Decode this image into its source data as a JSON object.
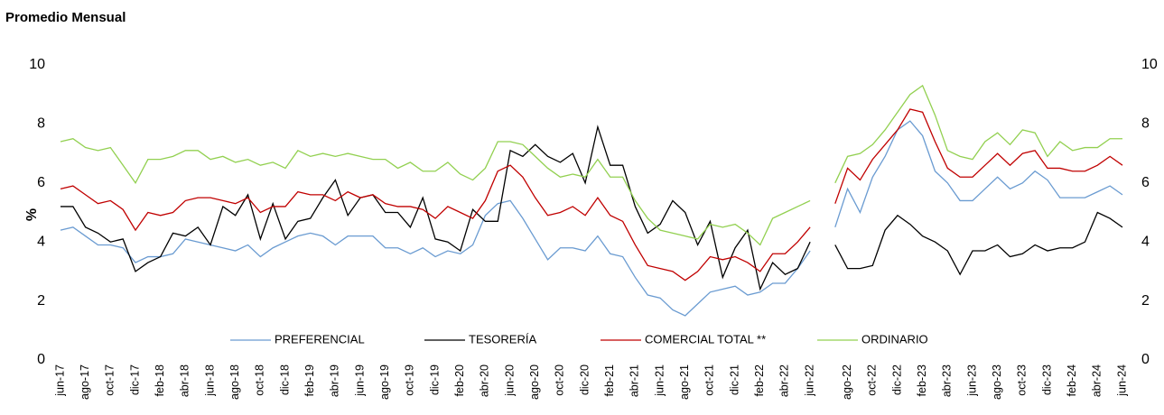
{
  "chart_data": {
    "type": "line",
    "subtitle": "Promedio Mensual",
    "y_label": "%",
    "categories": [
      "jun-17",
      null,
      "ago-17",
      null,
      "oct-17",
      null,
      "dic-17",
      null,
      "feb-18",
      null,
      "abr-18",
      null,
      "jun-18",
      null,
      "ago-18",
      null,
      "oct-18",
      null,
      "dic-18",
      null,
      "feb-19",
      null,
      "abr-19",
      null,
      "jun-19",
      null,
      "ago-19",
      null,
      "oct-19",
      null,
      "dic-19",
      null,
      "feb-20",
      null,
      "abr-20",
      null,
      "jun-20",
      null,
      "ago-20",
      null,
      "oct-20",
      null,
      "dic-20",
      null,
      "feb-21",
      null,
      "abr-21",
      null,
      "jun-21",
      null,
      "ago-21",
      null,
      "oct-21",
      null,
      "dic-21",
      null,
      "feb-22",
      null,
      "abr-22",
      null,
      "jun-22",
      null,
      null,
      "ago-22",
      null,
      "oct-22",
      null,
      "dic-22",
      null,
      "feb-23",
      null,
      "abr-23",
      null,
      "jun-23",
      null,
      "ago-23",
      null,
      "oct-23",
      null,
      "dic-23",
      null,
      "feb-24",
      null,
      "abr-24",
      null,
      "jun-24"
    ],
    "series": [
      {
        "name": "PREFERENCIAL",
        "color": "#6a9bd1",
        "values": [
          4.4,
          4.5,
          4.2,
          3.9,
          3.9,
          3.8,
          3.3,
          3.5,
          3.5,
          3.6,
          4.1,
          4.0,
          3.9,
          3.8,
          3.7,
          3.9,
          3.5,
          3.8,
          4.0,
          4.2,
          4.3,
          4.2,
          3.9,
          4.2,
          4.2,
          4.2,
          3.8,
          3.8,
          3.6,
          3.8,
          3.5,
          3.7,
          3.6,
          3.9,
          4.9,
          5.3,
          5.4,
          4.8,
          4.1,
          3.4,
          3.8,
          3.8,
          3.7,
          4.2,
          3.6,
          3.5,
          2.8,
          2.2,
          2.1,
          1.7,
          1.5,
          1.9,
          2.3,
          2.4,
          2.5,
          2.2,
          2.3,
          2.6,
          2.6,
          3.1,
          3.7,
          null,
          4.5,
          5.8,
          5.0,
          6.2,
          6.9,
          7.8,
          8.1,
          7.6,
          6.4,
          6.0,
          5.4,
          5.4,
          5.8,
          6.2,
          5.8,
          6.0,
          6.4,
          6.1,
          5.5,
          5.5,
          5.5,
          5.7,
          5.9,
          5.6
        ]
      },
      {
        "name": "TESORERÍA",
        "color": "#000000",
        "values": [
          5.2,
          5.2,
          4.5,
          4.3,
          4.0,
          4.1,
          3.0,
          3.3,
          3.5,
          4.3,
          4.2,
          4.5,
          3.9,
          5.2,
          4.9,
          5.6,
          4.1,
          5.3,
          4.1,
          4.7,
          4.8,
          5.5,
          6.1,
          4.9,
          5.5,
          5.6,
          5.0,
          5.0,
          4.5,
          5.5,
          4.1,
          4.0,
          3.7,
          5.1,
          4.7,
          4.7,
          7.1,
          6.9,
          7.3,
          6.9,
          6.7,
          7.0,
          6.0,
          7.9,
          6.6,
          6.6,
          5.2,
          4.3,
          4.6,
          5.4,
          5.0,
          3.9,
          4.7,
          2.8,
          3.8,
          4.4,
          2.4,
          3.3,
          2.9,
          3.1,
          4.0,
          null,
          3.9,
          3.1,
          3.1,
          3.2,
          4.4,
          4.9,
          4.6,
          4.2,
          4.0,
          3.7,
          2.9,
          3.7,
          3.7,
          3.9,
          3.5,
          3.6,
          3.9,
          3.7,
          3.8,
          3.8,
          4.0,
          5.0,
          4.8,
          4.5
        ]
      },
      {
        "name": "COMERCIAL TOTAL **",
        "color": "#c00000",
        "values": [
          5.8,
          5.9,
          5.6,
          5.3,
          5.4,
          5.1,
          4.4,
          5.0,
          4.9,
          5.0,
          5.4,
          5.5,
          5.5,
          5.4,
          5.3,
          5.5,
          5.0,
          5.2,
          5.2,
          5.7,
          5.6,
          5.6,
          5.4,
          5.7,
          5.5,
          5.6,
          5.3,
          5.2,
          5.2,
          5.1,
          4.8,
          5.2,
          5.0,
          4.8,
          5.4,
          6.4,
          6.6,
          6.2,
          5.5,
          4.9,
          5.0,
          5.2,
          4.9,
          5.5,
          4.9,
          4.7,
          3.9,
          3.2,
          3.1,
          3.0,
          2.7,
          3.0,
          3.5,
          3.4,
          3.5,
          3.3,
          3.0,
          3.6,
          3.6,
          4.0,
          4.5,
          null,
          5.3,
          6.5,
          6.1,
          6.8,
          7.3,
          7.8,
          8.5,
          8.4,
          7.4,
          6.5,
          6.2,
          6.2,
          6.6,
          7.0,
          6.6,
          7.0,
          7.1,
          6.5,
          6.5,
          6.4,
          6.4,
          6.6,
          6.9,
          6.6
        ]
      },
      {
        "name": "ORDINARIO",
        "color": "#92d050",
        "values": [
          7.4,
          7.5,
          7.2,
          7.1,
          7.2,
          6.6,
          6.0,
          6.8,
          6.8,
          6.9,
          7.1,
          7.1,
          6.8,
          6.9,
          6.7,
          6.8,
          6.6,
          6.7,
          6.5,
          7.1,
          6.9,
          7.0,
          6.9,
          7.0,
          6.9,
          6.8,
          6.8,
          6.5,
          6.7,
          6.4,
          6.4,
          6.7,
          6.3,
          6.1,
          6.5,
          7.4,
          7.4,
          7.3,
          6.9,
          6.5,
          6.2,
          6.3,
          6.2,
          6.8,
          6.2,
          6.2,
          5.4,
          4.8,
          4.4,
          4.3,
          4.2,
          4.1,
          4.6,
          4.5,
          4.6,
          4.3,
          3.9,
          4.8,
          5.0,
          5.2,
          5.4,
          null,
          6.0,
          6.9,
          7.0,
          7.3,
          7.8,
          8.4,
          9.0,
          9.3,
          8.3,
          7.1,
          6.9,
          6.8,
          7.4,
          7.7,
          7.3,
          7.8,
          7.7,
          6.9,
          7.4,
          7.1,
          7.2,
          7.2,
          7.5,
          7.5
        ]
      }
    ],
    "ylim": [
      0,
      10
    ],
    "yticks": [
      0,
      2,
      4,
      6,
      8,
      10
    ],
    "y2lim": [
      0,
      10
    ],
    "y2ticks": [
      0,
      2,
      4,
      6,
      8,
      10
    ],
    "grid": false,
    "legend": "bottom"
  }
}
